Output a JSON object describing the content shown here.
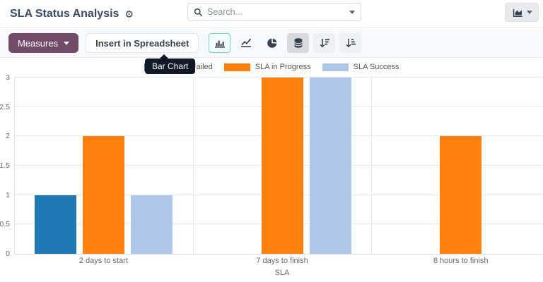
{
  "header": {
    "title": "SLA Status Analysis",
    "search": {
      "placeholder": "Search..."
    }
  },
  "toolbar": {
    "measures_label": "Measures",
    "insert_label": "Insert in Spreadsheet",
    "chart_type_buttons": [
      {
        "name": "bar-chart",
        "tooltip": "Bar Chart",
        "state": "selected"
      },
      {
        "name": "line-chart",
        "state": "default"
      },
      {
        "name": "pie-chart",
        "state": "default"
      },
      {
        "name": "stacked-toggle",
        "state": "active"
      },
      {
        "name": "sort-descending",
        "state": "default"
      },
      {
        "name": "sort-ascending",
        "state": "default"
      }
    ],
    "tooltip_text": "Bar Chart"
  },
  "view_switcher": {
    "icon": "area-chart-icon"
  },
  "chart_data": {
    "type": "bar",
    "title": "",
    "categories": [
      "2 days to start",
      "7 days to finish",
      "8 hours to finish"
    ],
    "series": [
      {
        "name": "SLA Failed",
        "color": "#1f77b4",
        "values": [
          1,
          0,
          0
        ]
      },
      {
        "name": "SLA in Progress",
        "color": "#ff7f0e",
        "values": [
          2,
          3,
          2
        ]
      },
      {
        "name": "SLA Success",
        "color": "#aec7e8",
        "values": [
          1,
          3,
          0
        ]
      }
    ],
    "xlabel": "SLA",
    "ylim": [
      0,
      3
    ],
    "ytick_step": 0.5,
    "grid": true,
    "legend_position": "top"
  }
}
